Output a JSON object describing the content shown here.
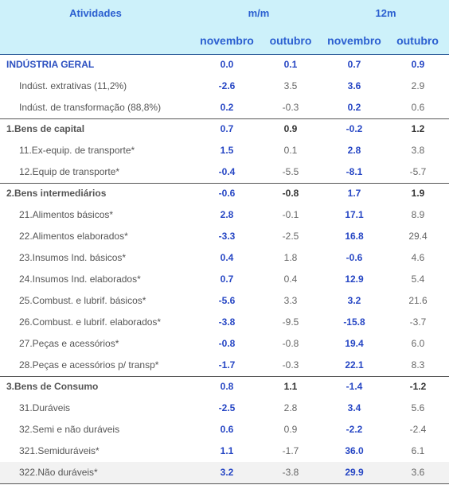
{
  "header": {
    "activity": "Atividades",
    "groups": [
      "m/m",
      "12m"
    ],
    "months": [
      "novembro",
      "outubro",
      "novembro",
      "outubro"
    ]
  },
  "sections": [
    {
      "label": "INDÚSTRIA GERAL",
      "values": [
        "0.0",
        "0.1",
        "0.7",
        "0.9"
      ],
      "items": [
        {
          "label": "Indúst. extrativas (11,2%)",
          "values": [
            "-2.6",
            "3.5",
            "3.6",
            "2.9"
          ]
        },
        {
          "label": "Indúst. de transformação (88,8%)",
          "values": [
            "0.2",
            "-0.3",
            "0.2",
            "0.6"
          ]
        }
      ]
    },
    {
      "label": "1.Bens de capital",
      "values": [
        "0.7",
        "0.9",
        "-0.2",
        "1.2"
      ],
      "items": [
        {
          "label": "11.Ex-equip. de transporte*",
          "values": [
            "1.5",
            "0.1",
            "2.8",
            "3.8"
          ]
        },
        {
          "label": "12.Equip de transporte*",
          "values": [
            "-0.4",
            "-5.5",
            "-8.1",
            "-5.7"
          ]
        }
      ]
    },
    {
      "label": "2.Bens intermediários",
      "values": [
        "-0.6",
        "-0.8",
        "1.7",
        "1.9"
      ],
      "items": [
        {
          "label": "21.Alimentos básicos*",
          "values": [
            "2.8",
            "-0.1",
            "17.1",
            "8.9"
          ]
        },
        {
          "label": "22.Alimentos elaborados*",
          "values": [
            "-3.3",
            "-2.5",
            "16.8",
            "29.4"
          ]
        },
        {
          "label": "23.Insumos Ind. básicos*",
          "values": [
            "0.4",
            "1.8",
            "-0.6",
            "4.6"
          ]
        },
        {
          "label": "24.Insumos Ind. elaborados*",
          "values": [
            "0.7",
            "0.4",
            "12.9",
            "5.4"
          ]
        },
        {
          "label": "25.Combust. e lubrif. básicos*",
          "values": [
            "-5.6",
            "3.3",
            "3.2",
            "21.6"
          ]
        },
        {
          "label": "26.Combust. e lubrif. elaborados*",
          "values": [
            "-3.8",
            "-9.5",
            "-15.8",
            "-3.7"
          ]
        },
        {
          "label": "27.Peças e acessórios*",
          "values": [
            "-0.8",
            "-0.8",
            "19.4",
            "6.0"
          ]
        },
        {
          "label": "28.Peças e acessórios p/ transp*",
          "values": [
            "-1.7",
            "-0.3",
            "22.1",
            "8.3"
          ]
        }
      ]
    },
    {
      "label": "3.Bens de Consumo",
      "values": [
        "0.8",
        "1.1",
        "-1.4",
        "-1.2"
      ],
      "items": [
        {
          "label": "31.Duráveis",
          "values": [
            "-2.5",
            "2.8",
            "3.4",
            "5.6"
          ]
        },
        {
          "label": "32.Semi e não duráveis",
          "values": [
            "0.6",
            "0.9",
            "-2.2",
            "-2.4"
          ]
        },
        {
          "label": "321.Semiduráveis*",
          "values": [
            "1.1",
            "-1.7",
            "36.0",
            "6.1"
          ]
        },
        {
          "label": "322.Não duráveis*",
          "values": [
            "3.2",
            "-3.8",
            "29.9",
            "3.6"
          ]
        }
      ]
    }
  ]
}
